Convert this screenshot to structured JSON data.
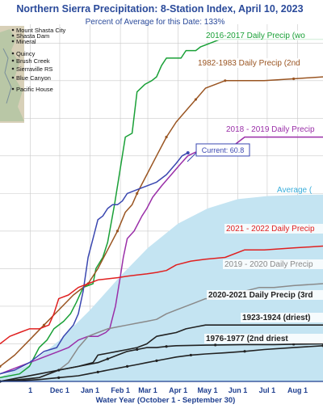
{
  "chart_data": {
    "type": "line",
    "title": "Northern Sierra Precipitation: 8-Station Index, April 10, 2023",
    "subtitle": "Percent of Average for this Date: 133%",
    "xlabel": "Water Year (October 1 - September 30)",
    "ylabel": "",
    "x_ticks": [
      "1",
      "Dec 1",
      "Jan 1",
      "Feb 1",
      "Mar 1",
      "Apr 1",
      "May 1",
      "Jun 1",
      "Jul 1",
      "Aug 1"
    ],
    "x_unit": "days since October 1",
    "x_tick_days": [
      31,
      61,
      92,
      123,
      151,
      182,
      212,
      243,
      273,
      304
    ],
    "xlim": [
      0,
      330
    ],
    "ylim": [
      0,
      95
    ],
    "grid": true,
    "current_label": "Current: 60.8",
    "current_point": [
      192,
      60.8
    ],
    "average_label": "Average (",
    "series": [
      {
        "name": "2016-2017 Daily Precip (wo",
        "color": "#1aa037",
        "x": [
          0,
          20,
          30,
          40,
          48,
          55,
          65,
          72,
          78,
          85,
          95,
          98,
          105,
          110,
          117,
          125,
          128,
          135,
          140,
          148,
          155,
          160,
          165,
          170,
          178,
          185,
          190,
          195,
          200,
          205,
          215,
          225,
          240,
          270,
          300,
          330
        ],
        "y": [
          1,
          2,
          4,
          9,
          11,
          14,
          16,
          18,
          21,
          25,
          26,
          30,
          33,
          37,
          47,
          60,
          65,
          66,
          77,
          79,
          80,
          81,
          84,
          86,
          86,
          86,
          88,
          88,
          88,
          89,
          90,
          91,
          91,
          91,
          91,
          91
        ]
      },
      {
        "name": "1982-1983 Daily Precip (2nd",
        "color": "#9a5522",
        "x": [
          0,
          15,
          30,
          45,
          60,
          75,
          90,
          100,
          110,
          120,
          128,
          135,
          140,
          150,
          160,
          170,
          180,
          190,
          200,
          210,
          220,
          230,
          250,
          270,
          300,
          330
        ],
        "y": [
          4,
          7,
          11,
          15,
          19,
          23,
          26,
          30,
          35,
          40,
          45,
          47,
          50,
          55,
          60,
          65,
          69,
          72,
          75,
          78,
          79,
          80,
          80,
          80,
          80.5,
          81
        ]
      },
      {
        "name": "2018 - 2019 Daily Precip",
        "color": "#9a2fa8",
        "x": [
          0,
          20,
          40,
          60,
          70,
          80,
          90,
          100,
          108,
          112,
          118,
          123,
          126,
          130,
          137,
          145,
          150,
          156,
          165,
          175,
          185,
          192,
          200,
          210,
          220,
          230,
          240,
          250,
          270,
          300,
          330
        ],
        "y": [
          2,
          4,
          6,
          8,
          9,
          11,
          12,
          12,
          13,
          14,
          20,
          28,
          33,
          38,
          40,
          44,
          46,
          49,
          52,
          55,
          58,
          60,
          61,
          61,
          61,
          62,
          63,
          65,
          65,
          65,
          65
        ]
      },
      {
        "name": "Current",
        "color": "#3a47b0",
        "x": [
          0,
          15,
          30,
          45,
          58,
          65,
          75,
          80,
          85,
          90,
          95,
          100,
          105,
          110,
          115,
          120,
          125,
          130,
          140,
          150,
          160,
          170,
          180,
          186,
          192
        ],
        "y": [
          2,
          3,
          5,
          8,
          9,
          12,
          15,
          18,
          24,
          33,
          38,
          43,
          44,
          46,
          47,
          47,
          48,
          50,
          51,
          52,
          53,
          55,
          58,
          60,
          60.8
        ]
      },
      {
        "name": "2021 - 2022 Daily Precip",
        "color": "#e02020",
        "x": [
          0,
          5,
          10,
          20,
          30,
          40,
          50,
          55,
          60,
          70,
          80,
          90,
          100,
          110,
          120,
          130,
          140,
          150,
          160,
          170,
          180,
          195,
          210,
          230,
          250,
          270,
          300,
          330
        ],
        "y": [
          10,
          11,
          12,
          13,
          14,
          14,
          15,
          18,
          22,
          23,
          25,
          26,
          27,
          27.3,
          27.6,
          28,
          28.3,
          28.6,
          29,
          29.5,
          31,
          32,
          32.5,
          33,
          35,
          35,
          35.5,
          36
        ]
      },
      {
        "name": "2019 - 2020 Daily Precip",
        "color": "#8a8a8a",
        "x": [
          0,
          20,
          40,
          60,
          70,
          80,
          90,
          100,
          110,
          120,
          130,
          140,
          150,
          160,
          170,
          180,
          190,
          200,
          210,
          220,
          235,
          250,
          265,
          280,
          300,
          330
        ],
        "y": [
          0,
          0.5,
          1,
          3,
          5,
          9,
          12,
          13,
          14,
          14.5,
          15,
          15.5,
          16,
          16.5,
          18,
          19,
          20,
          21,
          22,
          22,
          23,
          24,
          25,
          25,
          25.5,
          26
        ]
      },
      {
        "name": "2020-2021 Daily Precip (3rd",
        "color": "#222222",
        "x": [
          0,
          20,
          40,
          60,
          80,
          95,
          100,
          110,
          120,
          130,
          140,
          150,
          155,
          160,
          170,
          180,
          190,
          200,
          210,
          220,
          240,
          260,
          280,
          300,
          330
        ],
        "y": [
          0,
          0.5,
          1,
          3,
          4,
          5,
          7,
          7.5,
          8,
          8.5,
          9,
          10,
          11,
          12,
          12.5,
          13,
          14,
          14.5,
          15,
          15,
          15,
          15,
          15,
          15,
          15
        ]
      },
      {
        "name": "1923-1924 (driest)",
        "color": "#222222",
        "x": [
          0,
          20,
          40,
          60,
          80,
          100,
          110,
          120,
          130,
          140,
          150,
          160,
          170,
          180,
          200,
          220,
          250,
          280,
          300,
          330
        ],
        "y": [
          0,
          1,
          2,
          3,
          4,
          5,
          6,
          7,
          8,
          8.5,
          9,
          9,
          9.3,
          9.5,
          9.6,
          9.7,
          9.8,
          9.8,
          9.9,
          10
        ]
      },
      {
        "name": "1976-1977 (2nd driest",
        "color": "#222222",
        "x": [
          0,
          20,
          40,
          60,
          80,
          90,
          100,
          110,
          120,
          130,
          140,
          150,
          160,
          170,
          180,
          195,
          210,
          230,
          250,
          270,
          300,
          330
        ],
        "y": [
          0,
          0.2,
          0.5,
          1,
          1.5,
          2,
          2.5,
          3,
          3.5,
          4,
          4.5,
          5,
          5.5,
          6,
          6.5,
          7,
          7.3,
          7.6,
          8,
          8.5,
          9,
          9.5
        ]
      }
    ],
    "average": {
      "name": "Average (",
      "x": [
        0,
        30,
        61,
        92,
        123,
        151,
        182,
        212,
        243,
        273,
        304,
        330
      ],
      "y": [
        1.2,
        4.5,
        11,
        19,
        28,
        35.5,
        42,
        46,
        48.5,
        49.3,
        49.6,
        49.7
      ]
    },
    "series_label_positions": [
      {
        "series": 0,
        "label": "2016-2017 Daily Precip (wo",
        "color": "#1aa037"
      },
      {
        "series": 1,
        "label": "1982-1983 Daily Precip (2nd",
        "color": "#9a5522"
      },
      {
        "series": 2,
        "label": "2018 - 2019 Daily Precip",
        "color": "#9a2fa8"
      },
      {
        "series": 4,
        "label": "2021 - 2022 Daily Precip",
        "color": "#e02020"
      },
      {
        "series": 5,
        "label": "2019 - 2020 Daily Precip",
        "color": "#8a8a8a"
      },
      {
        "series": 6,
        "label": "2020-2021 Daily Precip (3rd",
        "color": "#222222"
      },
      {
        "series": 7,
        "label": "1923-1924 (driest)",
        "color": "#222222"
      },
      {
        "series": 8,
        "label": "1976-1977 (2nd driest",
        "color": "#222222"
      }
    ],
    "stations": [
      "Mount Shasta City",
      "Shasta Dam",
      "Mineral",
      "Quincy",
      "Brush Creek",
      "Sierraville RS",
      "Blue Canyon",
      "Pacific House"
    ]
  }
}
